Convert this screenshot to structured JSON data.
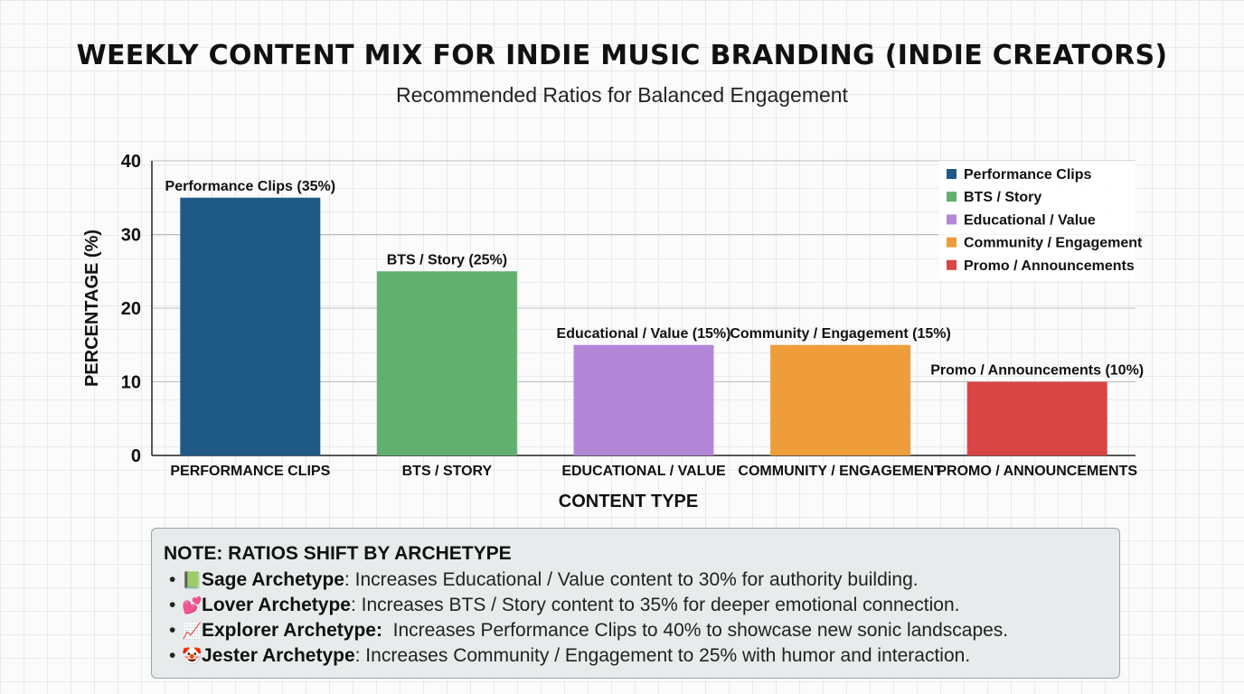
{
  "header": {
    "title": "WEEKLY CONTENT MIX FOR INDIE MUSIC BRANDING (INDIE CREATORS)",
    "subtitle": "Recommended Ratios for Balanced Engagement"
  },
  "chart_data": {
    "type": "bar",
    "title": "WEEKLY CONTENT MIX FOR INDIE MUSIC BRANDING (INDIE CREATORS)",
    "subtitle": "Recommended Ratios for Balanced Engagement",
    "xlabel": "CONTENT TYPE",
    "ylabel": "PERCENTAGE (%)",
    "ylim": [
      0,
      40
    ],
    "yticks": [
      0,
      10,
      20,
      30,
      40
    ],
    "grid": true,
    "legend_position": "top-right",
    "categories": [
      "PERFORMANCE CLIPS",
      "BTS / STORY",
      "EDUCATIONAL / VALUE",
      "COMMUNITY / ENGAGEMENT",
      "PROMO / ANNOUNCEMENTS"
    ],
    "values": [
      35,
      25,
      15,
      15,
      10
    ],
    "data_labels": [
      "Performance Clips (35%)",
      "BTS / Story (25%)",
      "Educational / Value (15%)",
      "Community / Engagement (15%)",
      "Promo / Announcements (10%)"
    ],
    "legend": [
      "Performance Clips",
      "BTS / Story",
      "Educational / Value",
      "Community / Engagement",
      "Promo / Announcements"
    ],
    "colors": [
      "#1f5a86",
      "#62b06f",
      "#b287d8",
      "#ef9c3b",
      "#d94545"
    ]
  },
  "note": {
    "title": "NOTE: RATIOS SHIFT BY ARCHETYPE",
    "items": [
      {
        "icon": "book-icon",
        "emoji": "📗",
        "archetype": "Sage Archetype",
        "text": ": Increases Educational / Value content to 30% for authority building."
      },
      {
        "icon": "hearts-icon",
        "emoji": "💕",
        "archetype": "Lover Archetype",
        "text": ": Increases BTS / Story content to 35% for deeper emotional connection."
      },
      {
        "icon": "chart-up-icon",
        "emoji": "📈",
        "archetype": "Explorer Archetype:",
        "text": "  Increases Performance Clips to 40% to showcase new sonic landscapes."
      },
      {
        "icon": "jester-face-icon",
        "emoji": "🤡",
        "archetype": "Jester Archetype",
        "text": ": Increases Community / Engagement to 25% with humor and interaction."
      }
    ]
  }
}
